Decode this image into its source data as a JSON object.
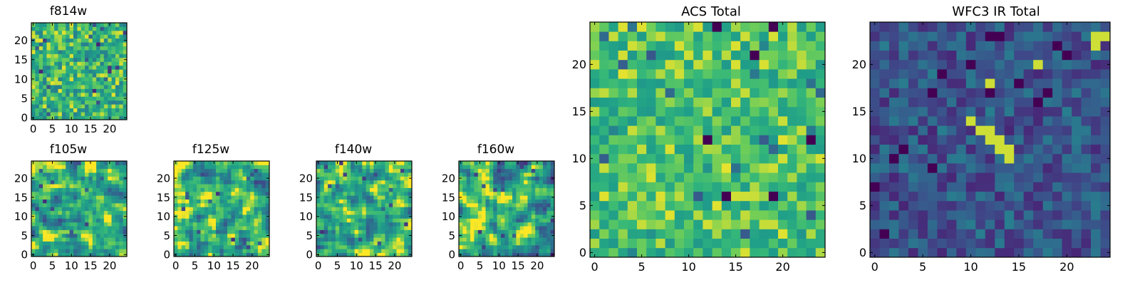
{
  "chart_data": [
    {
      "id": "f814w",
      "type": "heatmap",
      "title": "f814w",
      "grid": [
        25,
        25
      ],
      "xlim": [
        -0.5,
        24.5
      ],
      "ylim": [
        -0.5,
        24.5
      ],
      "xticks": [
        0,
        5,
        10,
        15,
        20
      ],
      "yticks": [
        0,
        5,
        10,
        15,
        20
      ],
      "colormap": "viridis",
      "pattern": "noise_fine",
      "seed": 11
    },
    {
      "id": "f105w",
      "type": "heatmap",
      "title": "f105w",
      "grid": [
        25,
        25
      ],
      "xlim": [
        -0.5,
        24.5
      ],
      "ylim": [
        -0.5,
        24.5
      ],
      "xticks": [
        0,
        5,
        10,
        15,
        20
      ],
      "yticks": [
        0,
        5,
        10,
        15,
        20
      ],
      "colormap": "viridis",
      "pattern": "smooth",
      "seed": 23
    },
    {
      "id": "f125w",
      "type": "heatmap",
      "title": "f125w",
      "grid": [
        25,
        25
      ],
      "xlim": [
        -0.5,
        24.5
      ],
      "ylim": [
        -0.5,
        24.5
      ],
      "xticks": [
        0,
        5,
        10,
        15,
        20
      ],
      "yticks": [
        0,
        5,
        10,
        15,
        20
      ],
      "colormap": "viridis",
      "pattern": "smooth",
      "seed": 37
    },
    {
      "id": "f140w",
      "type": "heatmap",
      "title": "f140w",
      "grid": [
        25,
        25
      ],
      "xlim": [
        -0.5,
        24.5
      ],
      "ylim": [
        -0.5,
        24.5
      ],
      "xticks": [
        0,
        5,
        10,
        15,
        20
      ],
      "yticks": [
        0,
        5,
        10,
        15,
        20
      ],
      "colormap": "viridis",
      "pattern": "smooth",
      "seed": 41
    },
    {
      "id": "f160w",
      "type": "heatmap",
      "title": "f160w",
      "grid": [
        25,
        25
      ],
      "xlim": [
        -0.5,
        24.5
      ],
      "ylim": [
        -0.5,
        24.5
      ],
      "xticks": [
        0,
        5,
        10,
        15,
        20
      ],
      "yticks": [
        0,
        5,
        10,
        15,
        20
      ],
      "colormap": "viridis",
      "pattern": "smooth",
      "seed": 53
    },
    {
      "id": "acs",
      "type": "heatmap",
      "title": "ACS Total",
      "grid": [
        25,
        25
      ],
      "xlim": [
        -0.5,
        24.5
      ],
      "ylim": [
        -0.5,
        24.5
      ],
      "xticks": [
        0,
        5,
        10,
        15,
        20
      ],
      "yticks": [
        0,
        5,
        10,
        15,
        20
      ],
      "colormap": "viridis",
      "pattern": "noise_bright",
      "seed": 67
    },
    {
      "id": "wfc3",
      "type": "heatmap",
      "title": "WFC3 IR Total",
      "grid": [
        25,
        25
      ],
      "xlim": [
        -0.5,
        24.5
      ],
      "ylim": [
        -0.5,
        24.5
      ],
      "xticks": [
        0,
        5,
        10,
        15,
        20
      ],
      "yticks": [
        0,
        5,
        10,
        15,
        20
      ],
      "colormap": "viridis",
      "pattern": "dark_streak",
      "seed": 79,
      "bright_pixels": [
        [
          10,
          14
        ],
        [
          11,
          13
        ],
        [
          12,
          13
        ],
        [
          12,
          12
        ],
        [
          13,
          12
        ],
        [
          13,
          11
        ],
        [
          14,
          11
        ],
        [
          14,
          10
        ],
        [
          12,
          18
        ],
        [
          17,
          20
        ],
        [
          23,
          22
        ],
        [
          23,
          23
        ],
        [
          24,
          23
        ]
      ]
    }
  ]
}
